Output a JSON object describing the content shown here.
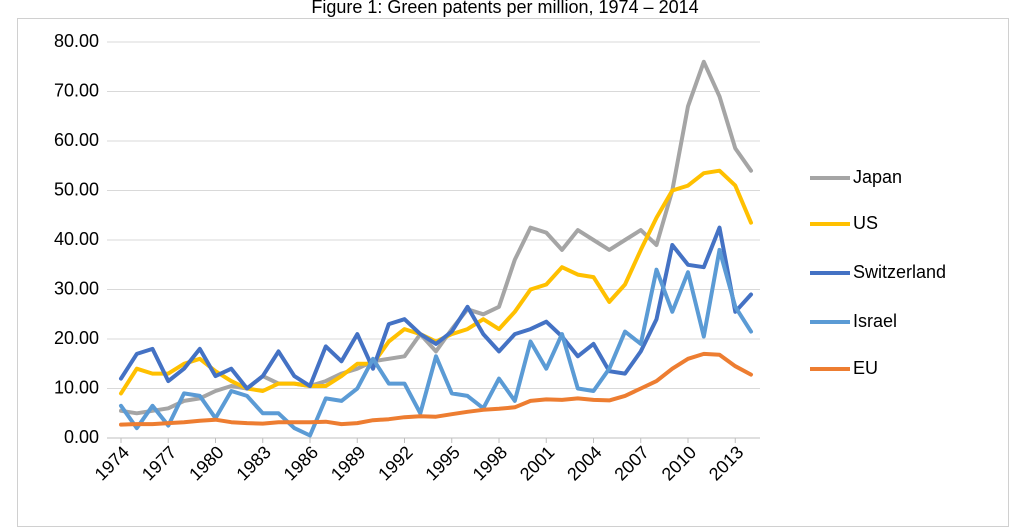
{
  "chart_data": {
    "type": "line",
    "title": "Figure 1: Green patents per million, 1974 – 2014",
    "x": [
      1974,
      1975,
      1976,
      1977,
      1978,
      1979,
      1980,
      1981,
      1982,
      1983,
      1984,
      1985,
      1986,
      1987,
      1988,
      1989,
      1990,
      1991,
      1992,
      1993,
      1994,
      1995,
      1996,
      1997,
      1998,
      1999,
      2000,
      2001,
      2002,
      2003,
      2004,
      2005,
      2006,
      2007,
      2008,
      2009,
      2010,
      2011,
      2012,
      2013,
      2014
    ],
    "xlim": [
      1974,
      2014
    ],
    "xticks": [
      1974,
      1977,
      1980,
      1983,
      1986,
      1989,
      1992,
      1995,
      1998,
      2001,
      2004,
      2007,
      2010,
      2013
    ],
    "ylim": [
      0,
      80
    ],
    "yticks": [
      {
        "value": 0,
        "label": "0.00"
      },
      {
        "value": 10,
        "label": "10.00"
      },
      {
        "value": 20,
        "label": "20.00"
      },
      {
        "value": 30,
        "label": "30.00"
      },
      {
        "value": 40,
        "label": "40.00"
      },
      {
        "value": 50,
        "label": "50.00"
      },
      {
        "value": 60,
        "label": "60.00"
      },
      {
        "value": 70,
        "label": "70.00"
      },
      {
        "value": 80,
        "label": "80.00"
      }
    ],
    "grid": true,
    "legend": "right",
    "series": [
      {
        "name": "Japan",
        "color": "#a5a5a5",
        "values": [
          5.5,
          5,
          5.5,
          6,
          7.5,
          8,
          9.5,
          10.5,
          10,
          12.5,
          11,
          11,
          10.5,
          11.5,
          13,
          14,
          15.5,
          16,
          16.5,
          21,
          17.5,
          22,
          26,
          25,
          26.5,
          36,
          42.5,
          41.5,
          38,
          42,
          40,
          38,
          40,
          42,
          39,
          50,
          67,
          76,
          69,
          58.5,
          54
        ]
      },
      {
        "name": "US",
        "color": "#ffc000",
        "values": [
          9,
          14,
          13,
          13,
          15,
          16,
          13.5,
          11.5,
          10,
          9.5,
          11,
          11,
          10.5,
          10.5,
          12.5,
          15,
          15,
          19.5,
          22,
          21,
          19.5,
          21,
          22,
          24,
          22,
          25.5,
          30,
          31,
          34.5,
          33,
          32.5,
          27.5,
          31,
          38,
          44.5,
          50,
          51,
          53.5,
          54,
          51,
          43.5
        ]
      },
      {
        "name": "Switzerland",
        "color": "#4472c4",
        "values": [
          12,
          17,
          18,
          11.5,
          14,
          18,
          12.5,
          14,
          10,
          12.5,
          17.5,
          12.5,
          10.5,
          18.5,
          15.5,
          21,
          14,
          23,
          24,
          21,
          19,
          21.5,
          26.5,
          21,
          17.5,
          21,
          22,
          23.5,
          20.5,
          16.5,
          19,
          13.5,
          13,
          17.5,
          24,
          39,
          35,
          34.5,
          42.5,
          25.5,
          29
        ]
      },
      {
        "name": "Israel",
        "color": "#5b9bd5",
        "values": [
          6.5,
          2,
          6.5,
          2.5,
          9,
          8.5,
          4,
          9.5,
          8.5,
          5,
          5,
          2,
          0.5,
          8,
          7.5,
          10,
          16,
          11,
          11,
          5,
          16.5,
          9,
          8.5,
          6,
          12,
          7.5,
          19.5,
          14,
          21,
          10,
          9.5,
          14,
          21.5,
          19,
          34,
          25.5,
          33.5,
          20.5,
          38,
          26.5,
          21.5
        ]
      },
      {
        "name": "EU",
        "color": "#ed7d31",
        "values": [
          2.7,
          2.8,
          2.8,
          3,
          3.2,
          3.5,
          3.7,
          3.2,
          3,
          2.9,
          3.2,
          3.2,
          3.2,
          3.3,
          2.8,
          3,
          3.6,
          3.8,
          4.2,
          4.4,
          4.3,
          4.8,
          5.3,
          5.7,
          5.9,
          6.2,
          7.5,
          7.8,
          7.7,
          8,
          7.7,
          7.6,
          8.5,
          10,
          11.5,
          14,
          16,
          17,
          16.8,
          14.5,
          12.8
        ]
      }
    ]
  }
}
